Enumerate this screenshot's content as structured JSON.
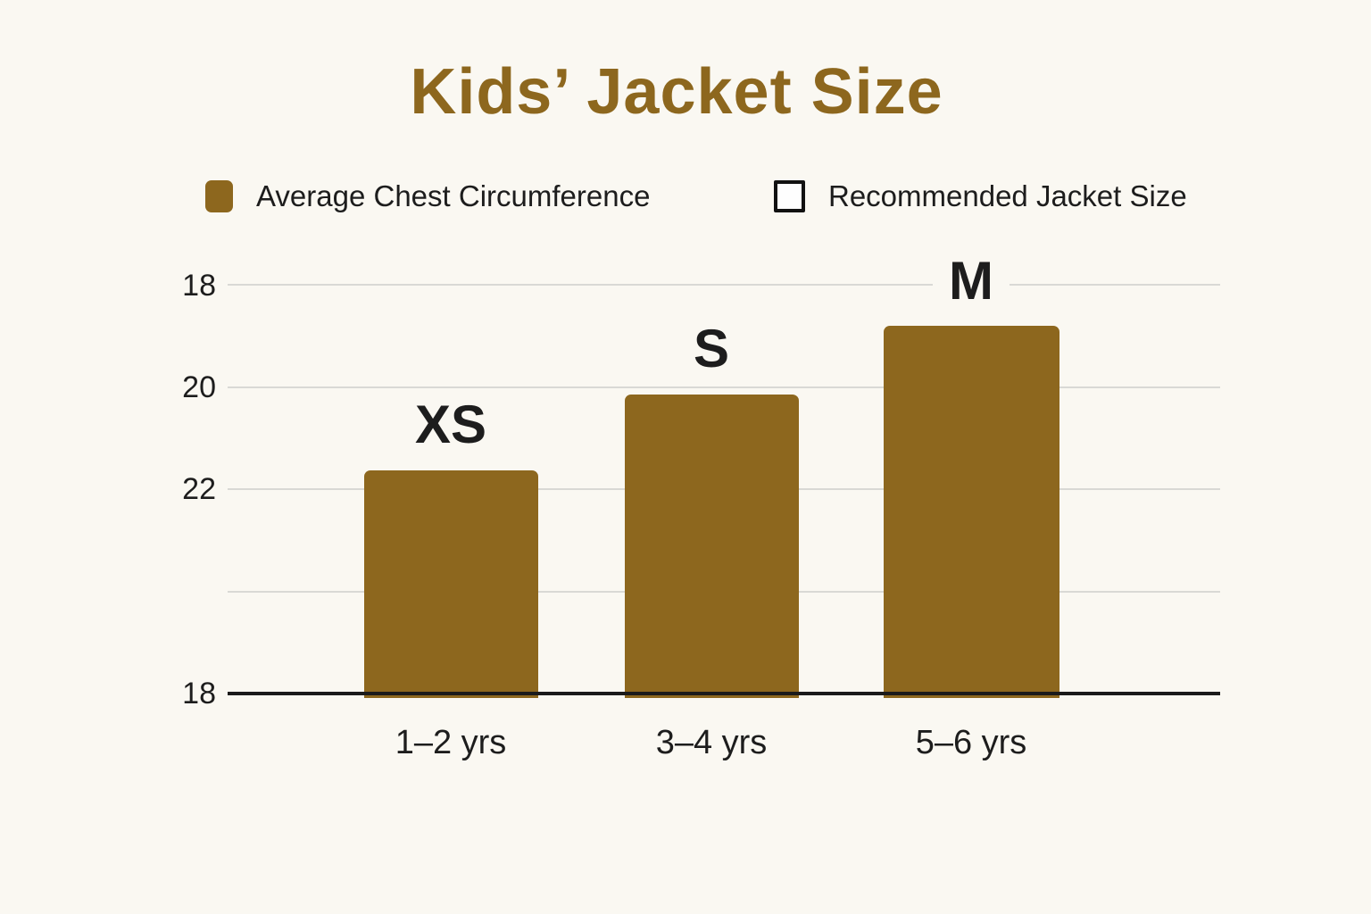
{
  "page": {
    "background_color": "#faf8f2",
    "accent_color": "#8d671e",
    "gridline_color": "#d9d9d5",
    "axis_color": "#1b1b1b"
  },
  "chart_data": {
    "type": "bar",
    "title": "Kids’ Jacket Size",
    "categories": [
      "1–2 yrs",
      "3–4 yrs",
      "5–6 yrs"
    ],
    "series": [
      {
        "name": "Average Chest Circumference",
        "bar_value_labels": [
          "XS",
          "S",
          "M"
        ],
        "bar_heights_pct_of_plot": [
          54.6,
          73.1,
          90.0
        ]
      }
    ],
    "legend": [
      {
        "label": "Average Chest Circumference",
        "swatch_style": "filled",
        "swatch_color": "#8d671e"
      },
      {
        "label": "Recommended Jacket Size",
        "swatch_style": "outlined",
        "swatch_color": "#fefefe"
      }
    ],
    "legend_position": "top",
    "grid": "horizontal-only",
    "y_axis": {
      "tick_labels_top_to_bottom": [
        "18",
        "20",
        "22",
        "",
        "18"
      ]
    },
    "x_axis": {
      "tick_labels": [
        "1–2 yrs",
        "3–4 yrs",
        "5–6 yrs"
      ]
    }
  }
}
